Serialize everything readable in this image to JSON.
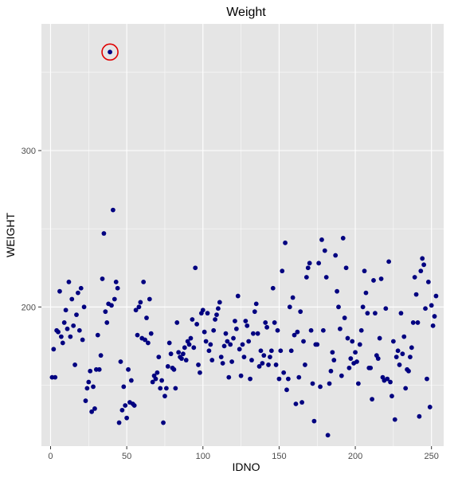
{
  "chart_data": {
    "type": "scatter",
    "title": "Weight",
    "xlabel": "IDNO",
    "ylabel": "WEIGHT",
    "xlim": [
      -6,
      258
    ],
    "ylim": [
      111,
      381
    ],
    "xticks": [
      0,
      50,
      100,
      150,
      200,
      250
    ],
    "yticks": [
      200,
      300
    ],
    "grid": true,
    "colors": {
      "panel": "#e5e5e5",
      "grid": "#ffffff",
      "point": "#000080",
      "highlight": "#e00000"
    },
    "highlight": {
      "x": 39,
      "y": 363
    },
    "points": [
      [
        1,
        155
      ],
      [
        2,
        173
      ],
      [
        3,
        155
      ],
      [
        4,
        185
      ],
      [
        5,
        184
      ],
      [
        6,
        210
      ],
      [
        7,
        181
      ],
      [
        8,
        177
      ],
      [
        9,
        190
      ],
      [
        10,
        198
      ],
      [
        11,
        186
      ],
      [
        12,
        216
      ],
      [
        13,
        181
      ],
      [
        14,
        205
      ],
      [
        15,
        188
      ],
      [
        16,
        163
      ],
      [
        17,
        195
      ],
      [
        18,
        209
      ],
      [
        19,
        185
      ],
      [
        20,
        212
      ],
      [
        21,
        179
      ],
      [
        22,
        200
      ],
      [
        23,
        140
      ],
      [
        24,
        148
      ],
      [
        25,
        152
      ],
      [
        26,
        159
      ],
      [
        27,
        133
      ],
      [
        28,
        149
      ],
      [
        29,
        135
      ],
      [
        30,
        160
      ],
      [
        31,
        182
      ],
      [
        32,
        160
      ],
      [
        33,
        169
      ],
      [
        34,
        218
      ],
      [
        35,
        247
      ],
      [
        36,
        197
      ],
      [
        37,
        190
      ],
      [
        38,
        202
      ],
      [
        39,
        363
      ],
      [
        40,
        201
      ],
      [
        41,
        262
      ],
      [
        42,
        205
      ],
      [
        43,
        216
      ],
      [
        44,
        212
      ],
      [
        45,
        126
      ],
      [
        46,
        165
      ],
      [
        47,
        134
      ],
      [
        48,
        149
      ],
      [
        49,
        137
      ],
      [
        50,
        129
      ],
      [
        51,
        160
      ],
      [
        52,
        139
      ],
      [
        53,
        153
      ],
      [
        54,
        138
      ],
      [
        55,
        137
      ],
      [
        56,
        198
      ],
      [
        57,
        182
      ],
      [
        58,
        200
      ],
      [
        59,
        203
      ],
      [
        60,
        180
      ],
      [
        61,
        216
      ],
      [
        62,
        179
      ],
      [
        63,
        193
      ],
      [
        64,
        177
      ],
      [
        65,
        205
      ],
      [
        66,
        183
      ],
      [
        67,
        152
      ],
      [
        68,
        156
      ],
      [
        69,
        154
      ],
      [
        70,
        158
      ],
      [
        71,
        168
      ],
      [
        72,
        148
      ],
      [
        73,
        153
      ],
      [
        74,
        126
      ],
      [
        75,
        143
      ],
      [
        76,
        148
      ],
      [
        77,
        162
      ],
      [
        78,
        177
      ],
      [
        79,
        170
      ],
      [
        80,
        161
      ],
      [
        81,
        160
      ],
      [
        82,
        148
      ],
      [
        83,
        190
      ],
      [
        84,
        171
      ],
      [
        85,
        168
      ],
      [
        86,
        167
      ],
      [
        87,
        170
      ],
      [
        88,
        174
      ],
      [
        89,
        166
      ],
      [
        90,
        178
      ],
      [
        91,
        176
      ],
      [
        92,
        180
      ],
      [
        93,
        192
      ],
      [
        94,
        174
      ],
      [
        95,
        225
      ],
      [
        96,
        189
      ],
      [
        97,
        163
      ],
      [
        98,
        158
      ],
      [
        99,
        196
      ],
      [
        100,
        198
      ],
      [
        101,
        184
      ],
      [
        102,
        178
      ],
      [
        103,
        196
      ],
      [
        104,
        172
      ],
      [
        105,
        176
      ],
      [
        106,
        166
      ],
      [
        107,
        185
      ],
      [
        108,
        192
      ],
      [
        109,
        195
      ],
      [
        110,
        199
      ],
      [
        111,
        203
      ],
      [
        112,
        168
      ],
      [
        113,
        164
      ],
      [
        114,
        175
      ],
      [
        115,
        183
      ],
      [
        116,
        178
      ],
      [
        117,
        155
      ],
      [
        118,
        176
      ],
      [
        119,
        165
      ],
      [
        120,
        180
      ],
      [
        121,
        191
      ],
      [
        122,
        186
      ],
      [
        123,
        207
      ],
      [
        124,
        173
      ],
      [
        125,
        156
      ],
      [
        126,
        176
      ],
      [
        127,
        168
      ],
      [
        128,
        191
      ],
      [
        129,
        188
      ],
      [
        130,
        178
      ],
      [
        131,
        154
      ],
      [
        132,
        166
      ],
      [
        133,
        183
      ],
      [
        134,
        197
      ],
      [
        135,
        202
      ],
      [
        136,
        183
      ],
      [
        137,
        162
      ],
      [
        138,
        172
      ],
      [
        139,
        164
      ],
      [
        140,
        169
      ],
      [
        141,
        190
      ],
      [
        142,
        187
      ],
      [
        143,
        163
      ],
      [
        144,
        168
      ],
      [
        145,
        172
      ],
      [
        146,
        212
      ],
      [
        147,
        190
      ],
      [
        148,
        163
      ],
      [
        149,
        185
      ],
      [
        150,
        154
      ],
      [
        151,
        172
      ],
      [
        152,
        223
      ],
      [
        153,
        158
      ],
      [
        154,
        241
      ],
      [
        155,
        147
      ],
      [
        156,
        154
      ],
      [
        157,
        200
      ],
      [
        158,
        172
      ],
      [
        159,
        206
      ],
      [
        160,
        182
      ],
      [
        161,
        138
      ],
      [
        162,
        184
      ],
      [
        163,
        155
      ],
      [
        164,
        197
      ],
      [
        165,
        139
      ],
      [
        166,
        178
      ],
      [
        167,
        163
      ],
      [
        168,
        219
      ],
      [
        169,
        225
      ],
      [
        170,
        228
      ],
      [
        171,
        185
      ],
      [
        172,
        151
      ],
      [
        173,
        127
      ],
      [
        174,
        176
      ],
      [
        175,
        176
      ],
      [
        176,
        228
      ],
      [
        177,
        149
      ],
      [
        178,
        243
      ],
      [
        179,
        185
      ],
      [
        180,
        236
      ],
      [
        181,
        219
      ],
      [
        182,
        118
      ],
      [
        183,
        151
      ],
      [
        184,
        159
      ],
      [
        185,
        171
      ],
      [
        186,
        166
      ],
      [
        187,
        233
      ],
      [
        188,
        210
      ],
      [
        189,
        200
      ],
      [
        190,
        186
      ],
      [
        191,
        156
      ],
      [
        192,
        244
      ],
      [
        193,
        193
      ],
      [
        194,
        225
      ],
      [
        195,
        180
      ],
      [
        196,
        161
      ],
      [
        197,
        167
      ],
      [
        198,
        178
      ],
      [
        199,
        164
      ],
      [
        200,
        171
      ],
      [
        201,
        165
      ],
      [
        202,
        151
      ],
      [
        203,
        176
      ],
      [
        204,
        185
      ],
      [
        205,
        200
      ],
      [
        206,
        223
      ],
      [
        207,
        209
      ],
      [
        208,
        196
      ],
      [
        209,
        161
      ],
      [
        210,
        161
      ],
      [
        211,
        141
      ],
      [
        212,
        217
      ],
      [
        213,
        196
      ],
      [
        214,
        169
      ],
      [
        215,
        167
      ],
      [
        216,
        180
      ],
      [
        217,
        218
      ],
      [
        218,
        155
      ],
      [
        219,
        153
      ],
      [
        220,
        199
      ],
      [
        221,
        154
      ],
      [
        222,
        229
      ],
      [
        223,
        152
      ],
      [
        224,
        143
      ],
      [
        225,
        178
      ],
      [
        226,
        128
      ],
      [
        227,
        168
      ],
      [
        228,
        172
      ],
      [
        229,
        163
      ],
      [
        230,
        196
      ],
      [
        231,
        170
      ],
      [
        232,
        181
      ],
      [
        233,
        148
      ],
      [
        234,
        160
      ],
      [
        235,
        159
      ],
      [
        236,
        168
      ],
      [
        237,
        174
      ],
      [
        238,
        190
      ],
      [
        239,
        219
      ],
      [
        240,
        208
      ],
      [
        241,
        190
      ],
      [
        242,
        130
      ],
      [
        243,
        223
      ],
      [
        244,
        231
      ],
      [
        245,
        227
      ],
      [
        246,
        199
      ],
      [
        247,
        154
      ],
      [
        248,
        216
      ],
      [
        249,
        136
      ],
      [
        250,
        201
      ],
      [
        251,
        188
      ],
      [
        252,
        194
      ],
      [
        253,
        207
      ]
    ]
  }
}
